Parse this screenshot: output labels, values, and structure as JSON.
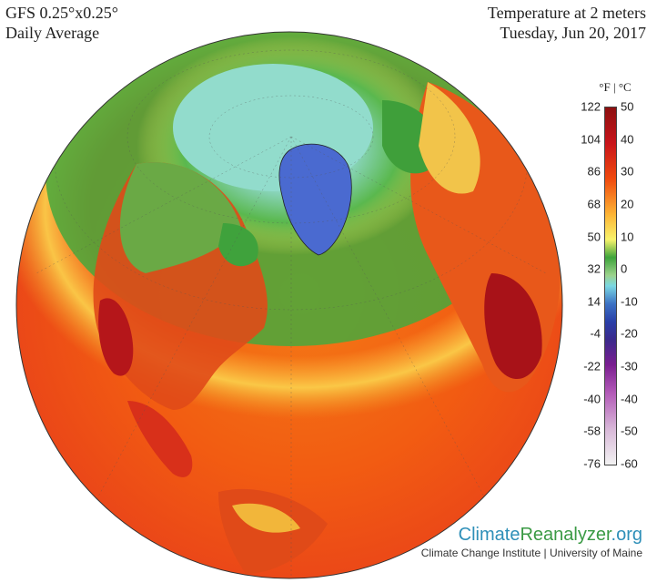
{
  "header": {
    "model": "GFS 0.25°x0.25°",
    "period": "Daily Average",
    "variable": "Temperature at 2 meters",
    "date": "Tuesday, Jun 20, 2017"
  },
  "legend": {
    "unit_f": "°F",
    "separator": "|",
    "unit_c": "°C",
    "fahrenheit_ticks": [
      "122",
      "104",
      "86",
      "68",
      "50",
      "32",
      "14",
      "-4",
      "-22",
      "-40",
      "-58",
      "-76"
    ],
    "celsius_ticks": [
      "50",
      "40",
      "30",
      "20",
      "10",
      "0",
      "-10",
      "-20",
      "-30",
      "-40",
      "-50",
      "-60"
    ]
  },
  "map": {
    "projection": "orthographic",
    "center": "North Atlantic / Arctic",
    "colors": {
      "ocean_warm": "#f25a12",
      "ocean_hot": "#e43a10",
      "land_hot": "#b81418",
      "mild": "#f8c34a",
      "cool_green": "#3f9f3a",
      "arctic": "#8fd8d0",
      "greenland": "#4463c8"
    }
  },
  "brand": {
    "name_part1": "Climate",
    "name_part2": "Reanalyzer",
    "name_part3": ".org",
    "subtitle": "Climate Change Institute | University of Maine"
  }
}
